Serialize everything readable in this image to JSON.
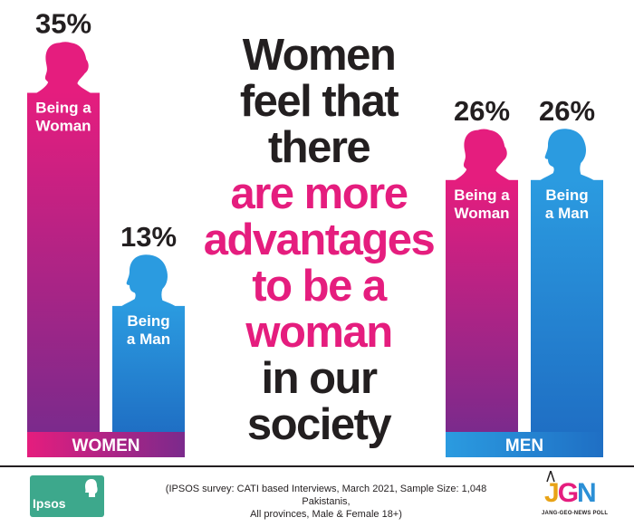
{
  "chart_data": {
    "type": "bar",
    "unit": "%",
    "groups": [
      {
        "name": "WOMEN",
        "color": "#e51d7e",
        "bars": [
          {
            "category": "Being a Woman",
            "label_lines": [
              "Being a",
              "Woman"
            ],
            "value": 35,
            "value_label": "35%",
            "icon": "woman-silhouette-icon",
            "color": "#e51d7e"
          },
          {
            "category": "Being a Man",
            "label_lines": [
              "Being",
              "a Man"
            ],
            "value": 13,
            "value_label": "13%",
            "icon": "man-silhouette-icon",
            "color": "#2b8fd6"
          }
        ]
      },
      {
        "name": "MEN",
        "color": "#2b8fd6",
        "bars": [
          {
            "category": "Being a Woman",
            "label_lines": [
              "Being a",
              "Woman"
            ],
            "value": 26,
            "value_label": "26%",
            "icon": "woman-silhouette-icon",
            "color": "#e51d7e"
          },
          {
            "category": "Being a Man",
            "label_lines": [
              "Being",
              "a Man"
            ],
            "value": 26,
            "value_label": "26%",
            "icon": "man-silhouette-icon",
            "color": "#2b8fd6"
          }
        ]
      }
    ],
    "colors": {
      "pink": "#e51d7e",
      "purple": "#7b2a8c",
      "blue": "#2b8fd6",
      "dark": "#231f20"
    }
  },
  "headline": {
    "lines": [
      {
        "text": "Women",
        "color": "#231f20"
      },
      {
        "text": "feel that",
        "color": "#231f20"
      },
      {
        "text": "there",
        "color": "#231f20"
      },
      {
        "text": "are more",
        "color": "#e51d7e"
      },
      {
        "text": "advantages",
        "color": "#e51d7e"
      },
      {
        "text": "to be a",
        "color": "#e51d7e"
      },
      {
        "text": "woman",
        "color": "#e51d7e"
      },
      {
        "text": "in our",
        "color": "#231f20"
      },
      {
        "text": "society",
        "color": "#231f20"
      }
    ]
  },
  "footer": {
    "source_line1": "(IPSOS survey: CATI based Interviews, March 2021, Sample Size: 1,048 Pakistanis,",
    "source_line2": "All provinces, Male & Female 18+)",
    "ipsos_logo": "Ipsos",
    "jgn_logo": "JGN",
    "jgn_caption": "JANG-GEO-NEWS POLL",
    "ipsos_color": "#3da88c"
  }
}
